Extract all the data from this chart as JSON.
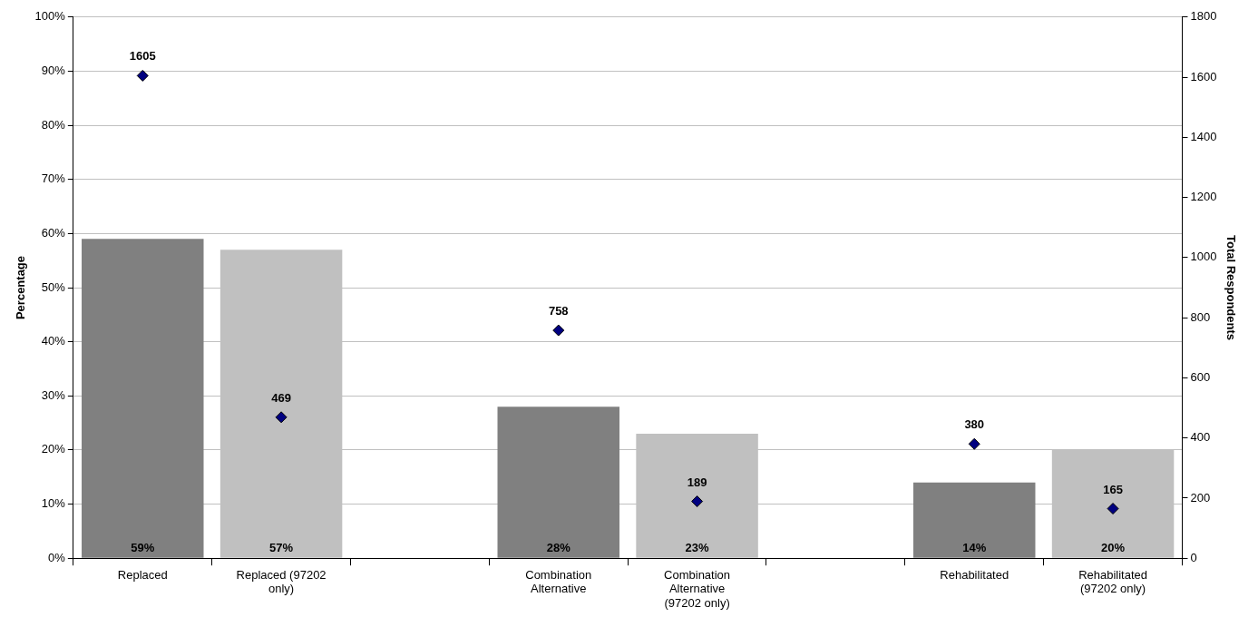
{
  "chart_data": {
    "type": "bar",
    "categories": [
      "Replaced",
      "Replaced (97202 only)",
      null,
      "Combination Alternative",
      "Combination Alternative (97202 only)",
      null,
      "Rehabilitated",
      "Rehabilitated (97202 only)"
    ],
    "series": [
      {
        "colors": [
          "#808080",
          "#c0c0c0",
          null,
          "#808080",
          "#c0c0c0",
          null,
          "#808080",
          "#c0c0c0"
        ],
        "values": [
          59,
          57,
          null,
          28,
          23,
          null,
          14,
          20
        ],
        "value_labels": [
          "59%",
          "57%",
          null,
          "28%",
          "23%",
          null,
          "14%",
          "20%"
        ]
      },
      {
        "type": "scatter",
        "axis": "y2",
        "color": "#000080",
        "marker": "diamond",
        "x": [
          "Replaced",
          "Replaced (97202 only)",
          "Combination Alternative",
          "Combination Alternative (97202 only)",
          "Rehabilitated",
          "Rehabilitated (97202 only)"
        ],
        "values": [
          1605,
          469,
          758,
          189,
          380,
          165
        ],
        "value_labels": [
          "1605",
          "469",
          "758",
          "189",
          "380",
          "165"
        ]
      }
    ],
    "ylabel": "Percentage",
    "y2label": "Total Respondents",
    "ylim": [
      0,
      100
    ],
    "yticks": [
      {
        "value": 0,
        "label": "0%"
      },
      {
        "value": 10,
        "label": "10%"
      },
      {
        "value": 20,
        "label": "20%"
      },
      {
        "value": 30,
        "label": "30%"
      },
      {
        "value": 40,
        "label": "40%"
      },
      {
        "value": 50,
        "label": "50%"
      },
      {
        "value": 60,
        "label": "60%"
      },
      {
        "value": 70,
        "label": "70%"
      },
      {
        "value": 80,
        "label": "80%"
      },
      {
        "value": 90,
        "label": "90%"
      },
      {
        "value": 100,
        "label": "100%"
      }
    ],
    "y2lim": [
      0,
      1800
    ],
    "y2ticks": [
      0,
      200,
      400,
      600,
      800,
      1000,
      1200,
      1400,
      1600,
      1800
    ],
    "grid": "y",
    "legend": false
  }
}
